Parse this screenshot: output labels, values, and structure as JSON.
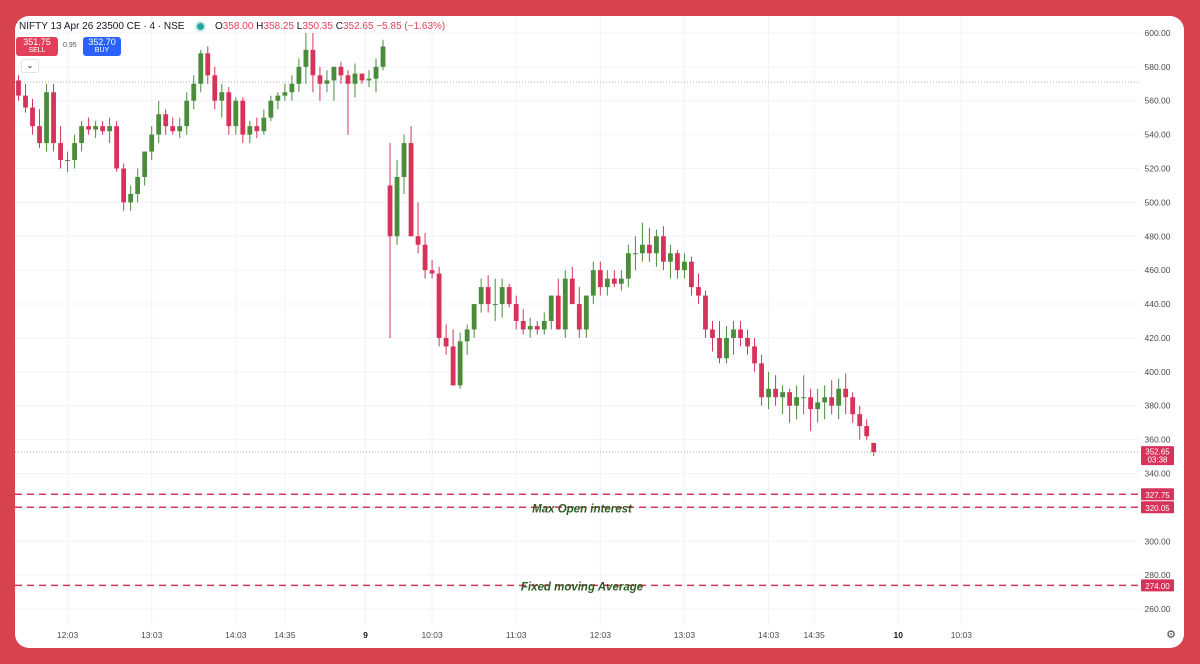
{
  "header": {
    "symbol": "NIFTY 13 Apr 26 23500 CE · 4 · NSE",
    "open_label": "O",
    "open": "358.00",
    "high_label": "H",
    "high": "358.25",
    "low_label": "L",
    "low": "350.35",
    "close_label": "C",
    "close": "352.65",
    "change": "−5.85 (−1.63%)"
  },
  "trade": {
    "sell_price": "351.75",
    "sell_label": "SELL",
    "spread": "0.95",
    "buy_price": "352.70",
    "buy_label": "BUY",
    "collapse_icon": "chevron-down"
  },
  "colors": {
    "up": "#4a8c3a",
    "down": "#d7335a",
    "level": "#d7335a",
    "annotation": "#2e5d23",
    "grid": "#f0f3fa",
    "axis_text": "#4a4a4a"
  },
  "chart_data": {
    "type": "candlestick",
    "title": "",
    "ylim": [
      250,
      610
    ],
    "y_ticks": [
      260,
      280,
      300,
      320,
      340,
      360,
      380,
      400,
      420,
      440,
      460,
      480,
      500,
      520,
      540,
      560,
      580,
      600
    ],
    "x_ticks": [
      {
        "index": 7,
        "label": "12:03"
      },
      {
        "index": 19,
        "label": "13:03"
      },
      {
        "index": 31,
        "label": "14:03"
      },
      {
        "index": 38,
        "label": "14:35"
      },
      {
        "index": 49.5,
        "label": "9",
        "bold": true
      },
      {
        "index": 59,
        "label": "10:03"
      },
      {
        "index": 71,
        "label": "11:03"
      },
      {
        "index": 83,
        "label": "12:03"
      },
      {
        "index": 95,
        "label": "13:03"
      },
      {
        "index": 107,
        "label": "14:03"
      },
      {
        "index": 113.5,
        "label": "14:35"
      },
      {
        "index": 125.5,
        "label": "10",
        "bold": true
      },
      {
        "index": 134.5,
        "label": "10:03"
      }
    ],
    "candles": [
      [
        572,
        575,
        560,
        563
      ],
      [
        563,
        570,
        553,
        556
      ],
      [
        556,
        561,
        540,
        545
      ],
      [
        545,
        555,
        532,
        535
      ],
      [
        535,
        570,
        530,
        565
      ],
      [
        565,
        570,
        530,
        535
      ],
      [
        535,
        545,
        520,
        525
      ],
      [
        525,
        530,
        518,
        525
      ],
      [
        525,
        540,
        520,
        535
      ],
      [
        535,
        548,
        530,
        545
      ],
      [
        545,
        550,
        540,
        543
      ],
      [
        543,
        548,
        538,
        545
      ],
      [
        545,
        548,
        540,
        542
      ],
      [
        542,
        550,
        535,
        545
      ],
      [
        545,
        548,
        518,
        520
      ],
      [
        520,
        523,
        495,
        500
      ],
      [
        500,
        510,
        495,
        505
      ],
      [
        505,
        520,
        500,
        515
      ],
      [
        515,
        530,
        510,
        530
      ],
      [
        530,
        545,
        525,
        540
      ],
      [
        540,
        560,
        535,
        552
      ],
      [
        552,
        555,
        540,
        545
      ],
      [
        545,
        550,
        540,
        542
      ],
      [
        542,
        550,
        538,
        545
      ],
      [
        545,
        565,
        540,
        560
      ],
      [
        560,
        575,
        555,
        570
      ],
      [
        570,
        590,
        565,
        588
      ],
      [
        588,
        592,
        570,
        575
      ],
      [
        575,
        580,
        555,
        560
      ],
      [
        560,
        570,
        550,
        565
      ],
      [
        565,
        568,
        540,
        545
      ],
      [
        545,
        562,
        540,
        560
      ],
      [
        560,
        562,
        535,
        540
      ],
      [
        540,
        548,
        535,
        545
      ],
      [
        545,
        550,
        538,
        542
      ],
      [
        542,
        555,
        540,
        550
      ],
      [
        550,
        563,
        548,
        560
      ],
      [
        560,
        565,
        555,
        563
      ],
      [
        563,
        570,
        560,
        565
      ],
      [
        565,
        575,
        560,
        570
      ],
      [
        570,
        585,
        565,
        580
      ],
      [
        580,
        600,
        570,
        590
      ],
      [
        590,
        600,
        565,
        575
      ],
      [
        575,
        580,
        560,
        570
      ],
      [
        570,
        578,
        565,
        572
      ],
      [
        572,
        580,
        560,
        580
      ],
      [
        580,
        583,
        570,
        575
      ],
      [
        575,
        578,
        540,
        570
      ],
      [
        570,
        582,
        562,
        576
      ],
      [
        576,
        575,
        570,
        572
      ],
      [
        572,
        578,
        568,
        573
      ],
      [
        573,
        585,
        565,
        580
      ],
      [
        580,
        596,
        578,
        592
      ],
      [
        510,
        535,
        420,
        480
      ],
      [
        480,
        525,
        475,
        515
      ],
      [
        515,
        540,
        505,
        535
      ],
      [
        535,
        545,
        480,
        480
      ],
      [
        480,
        500,
        470,
        475
      ],
      [
        475,
        482,
        455,
        460
      ],
      [
        460,
        466,
        455,
        458
      ],
      [
        458,
        462,
        415,
        420
      ],
      [
        420,
        428,
        410,
        415
      ],
      [
        415,
        425,
        392,
        392
      ],
      [
        392,
        423,
        390,
        418
      ],
      [
        418,
        428,
        410,
        425
      ],
      [
        425,
        440,
        420,
        440
      ],
      [
        440,
        455,
        435,
        450
      ],
      [
        450,
        457,
        435,
        440
      ],
      [
        440,
        455,
        430,
        440
      ],
      [
        440,
        455,
        432,
        450
      ],
      [
        450,
        452,
        438,
        440
      ],
      [
        440,
        445,
        425,
        430
      ],
      [
        430,
        437,
        422,
        425
      ],
      [
        425,
        432,
        420,
        427
      ],
      [
        427,
        430,
        422,
        425
      ],
      [
        425,
        435,
        422,
        430
      ],
      [
        430,
        445,
        425,
        445
      ],
      [
        445,
        455,
        425,
        425
      ],
      [
        425,
        460,
        420,
        455
      ],
      [
        455,
        462,
        440,
        440
      ],
      [
        440,
        450,
        420,
        425
      ],
      [
        425,
        445,
        420,
        445
      ],
      [
        445,
        465,
        440,
        460
      ],
      [
        460,
        465,
        445,
        450
      ],
      [
        450,
        460,
        445,
        455
      ],
      [
        455,
        460,
        450,
        452
      ],
      [
        452,
        460,
        448,
        455
      ],
      [
        455,
        475,
        450,
        470
      ],
      [
        470,
        480,
        460,
        470
      ],
      [
        470,
        488,
        465,
        475
      ],
      [
        475,
        485,
        465,
        470
      ],
      [
        470,
        484,
        462,
        480
      ],
      [
        480,
        486,
        460,
        465
      ],
      [
        465,
        475,
        455,
        470
      ],
      [
        470,
        472,
        455,
        460
      ],
      [
        460,
        470,
        455,
        465
      ],
      [
        465,
        468,
        445,
        450
      ],
      [
        450,
        458,
        440,
        445
      ],
      [
        445,
        448,
        420,
        425
      ],
      [
        425,
        430,
        412,
        420
      ],
      [
        420,
        430,
        405,
        408
      ],
      [
        408,
        427,
        405,
        420
      ],
      [
        420,
        430,
        410,
        425
      ],
      [
        425,
        430,
        415,
        420
      ],
      [
        420,
        425,
        410,
        415
      ],
      [
        415,
        420,
        400,
        405
      ],
      [
        405,
        410,
        380,
        385
      ],
      [
        385,
        400,
        378,
        390
      ],
      [
        390,
        398,
        380,
        385
      ],
      [
        385,
        392,
        375,
        388
      ],
      [
        388,
        390,
        370,
        380
      ],
      [
        380,
        392,
        372,
        385
      ],
      [
        385,
        398,
        375,
        385
      ],
      [
        385,
        390,
        365,
        378
      ],
      [
        378,
        390,
        370,
        382
      ],
      [
        382,
        392,
        372,
        385
      ],
      [
        385,
        395,
        375,
        380
      ],
      [
        380,
        396,
        372,
        390
      ],
      [
        390,
        399,
        375,
        385
      ],
      [
        385,
        388,
        370,
        375
      ],
      [
        375,
        380,
        360,
        368
      ],
      [
        368,
        372,
        360,
        362
      ],
      [
        358,
        358.25,
        350.35,
        352.65
      ]
    ],
    "levels": [
      {
        "value": 327.75,
        "label": "327.75",
        "style": "dashed"
      },
      {
        "value": 320.05,
        "label": "320.05",
        "style": "dashed",
        "annotation": "Max Open interest"
      },
      {
        "value": 274.0,
        "label": "274.00",
        "style": "dashed",
        "annotation": "Fixed moving Average"
      }
    ],
    "last_price": {
      "value": 352.65,
      "label": "352.65",
      "countdown": "03:38"
    },
    "reference_line": 571
  }
}
